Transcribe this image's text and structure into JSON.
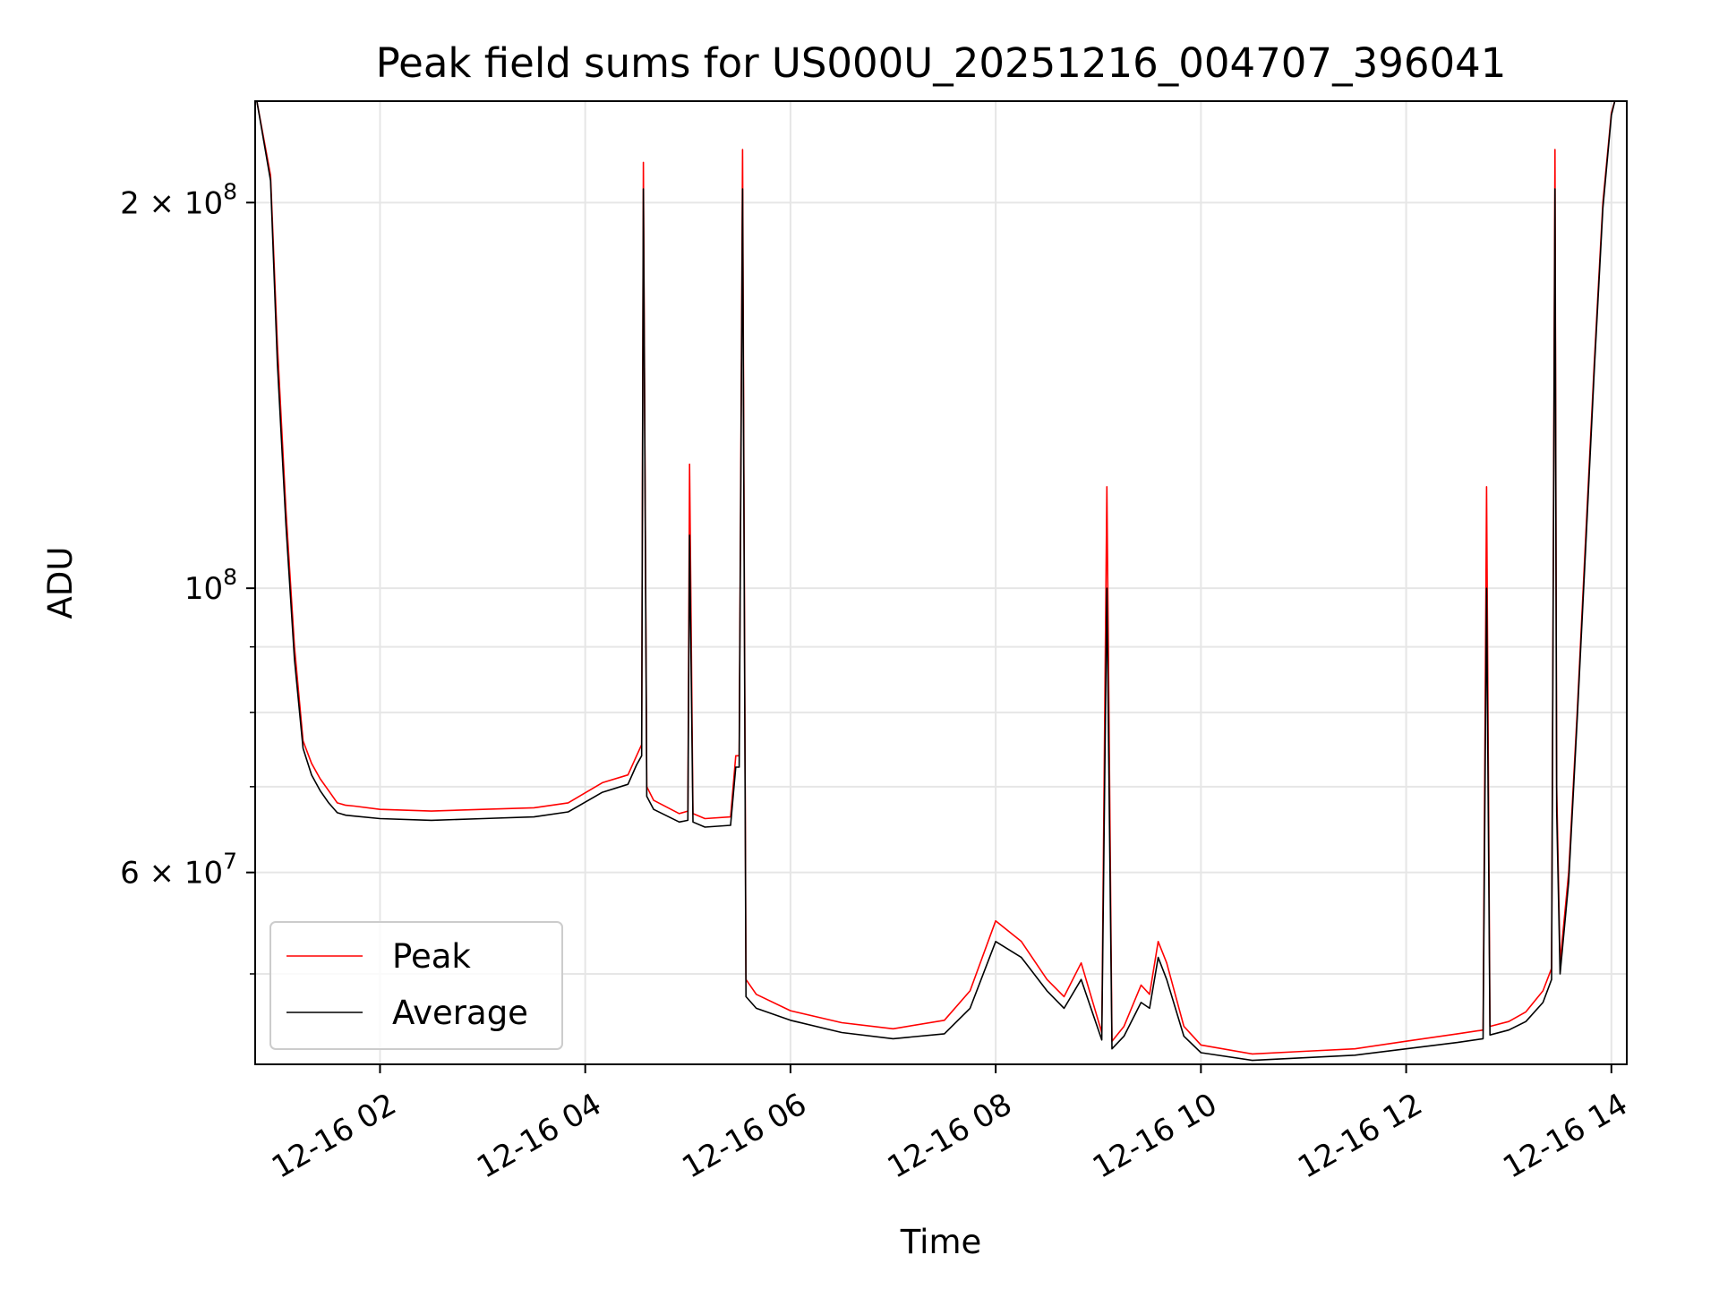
{
  "chart_data": {
    "type": "line",
    "title": "Peak field sums for US000U_20251216_004707_396041",
    "xlabel": "Time",
    "ylabel": "ADU",
    "yscale": "log",
    "ylim": [
      42500000,
      240000000
    ],
    "xlim": [
      "2025-12-16 00:47",
      "2025-12-16 14:09"
    ],
    "grid": true,
    "legend_position": "lower-left",
    "x_ticks": [
      {
        "value": "2025-12-16 02:00",
        "label": "12-16 02"
      },
      {
        "value": "2025-12-16 04:00",
        "label": "12-16 04"
      },
      {
        "value": "2025-12-16 06:00",
        "label": "12-16 06"
      },
      {
        "value": "2025-12-16 08:00",
        "label": "12-16 08"
      },
      {
        "value": "2025-12-16 10:00",
        "label": "12-16 10"
      },
      {
        "value": "2025-12-16 12:00",
        "label": "12-16 12"
      },
      {
        "value": "2025-12-16 14:00",
        "label": "12-16 14"
      }
    ],
    "y_ticks": [
      {
        "value": 60000000,
        "label": "6 × 10",
        "exp": "7"
      },
      {
        "value": 100000000,
        "label": "10",
        "exp": "8"
      },
      {
        "value": 200000000,
        "label": "2 × 10",
        "exp": "8"
      }
    ],
    "y_minor_ticks": [
      50000000,
      70000000,
      80000000,
      90000000
    ],
    "series": [
      {
        "name": "Peak",
        "color": "#ff0000",
        "x": [
          "2025-12-16 00:48",
          "2025-12-16 00:56",
          "2025-12-16 01:00",
          "2025-12-16 01:05",
          "2025-12-16 01:10",
          "2025-12-16 01:15",
          "2025-12-16 01:20",
          "2025-12-16 01:25",
          "2025-12-16 01:30",
          "2025-12-16 01:35",
          "2025-12-16 01:40",
          "2025-12-16 01:45",
          "2025-12-16 02:00",
          "2025-12-16 02:30",
          "2025-12-16 03:00",
          "2025-12-16 03:30",
          "2025-12-16 03:50",
          "2025-12-16 04:10",
          "2025-12-16 04:25",
          "2025-12-16 04:30",
          "2025-12-16 04:33",
          "2025-12-16 04:34",
          "2025-12-16 04:36",
          "2025-12-16 04:40",
          "2025-12-16 04:55",
          "2025-12-16 05:00",
          "2025-12-16 05:01",
          "2025-12-16 05:03",
          "2025-12-16 05:10",
          "2025-12-16 05:25",
          "2025-12-16 05:28",
          "2025-12-16 05:30",
          "2025-12-16 05:32",
          "2025-12-16 05:34",
          "2025-12-16 05:40",
          "2025-12-16 06:00",
          "2025-12-16 06:30",
          "2025-12-16 07:00",
          "2025-12-16 07:30",
          "2025-12-16 07:45",
          "2025-12-16 08:00",
          "2025-12-16 08:15",
          "2025-12-16 08:30",
          "2025-12-16 08:40",
          "2025-12-16 08:50",
          "2025-12-16 09:02",
          "2025-12-16 09:05",
          "2025-12-16 09:08",
          "2025-12-16 09:15",
          "2025-12-16 09:25",
          "2025-12-16 09:30",
          "2025-12-16 09:35",
          "2025-12-16 09:40",
          "2025-12-16 09:50",
          "2025-12-16 10:00",
          "2025-12-16 10:30",
          "2025-12-16 11:00",
          "2025-12-16 11:30",
          "2025-12-16 12:00",
          "2025-12-16 12:30",
          "2025-12-16 12:45",
          "2025-12-16 12:47",
          "2025-12-16 12:49",
          "2025-12-16 13:00",
          "2025-12-16 13:10",
          "2025-12-16 13:20",
          "2025-12-16 13:25",
          "2025-12-16 13:27",
          "2025-12-16 13:28",
          "2025-12-16 13:30",
          "2025-12-16 13:35",
          "2025-12-16 13:40",
          "2025-12-16 13:45",
          "2025-12-16 13:50",
          "2025-12-16 13:55",
          "2025-12-16 14:00",
          "2025-12-16 14:02"
        ],
        "y": [
          240000000,
          210000000,
          155000000,
          115000000,
          90000000,
          76000000,
          73000000,
          71000000,
          69500000,
          68000000,
          67700000,
          67600000,
          67200000,
          67000000,
          67200000,
          67400000,
          68000000,
          70500000,
          71500000,
          74000000,
          75500000,
          215000000,
          70000000,
          68300000,
          66700000,
          67000000,
          125000000,
          66700000,
          66100000,
          66300000,
          74000000,
          74000000,
          220000000,
          49500000,
          48200000,
          46800000,
          45800000,
          45300000,
          46000000,
          48500000,
          55000000,
          53000000,
          49500000,
          48000000,
          51000000,
          45000000,
          120000000,
          44300000,
          45500000,
          49000000,
          48200000,
          53000000,
          51000000,
          45500000,
          44000000,
          43300000,
          43500000,
          43700000,
          44300000,
          44900000,
          45200000,
          120000000,
          45500000,
          45900000,
          46700000,
          48500000,
          50500000,
          220000000,
          70000000,
          51000000,
          60000000,
          80000000,
          110000000,
          150000000,
          200000000,
          235000000,
          240000000
        ]
      },
      {
        "name": "Average",
        "color": "#000000",
        "x": [
          "2025-12-16 00:48",
          "2025-12-16 00:56",
          "2025-12-16 01:00",
          "2025-12-16 01:05",
          "2025-12-16 01:10",
          "2025-12-16 01:15",
          "2025-12-16 01:20",
          "2025-12-16 01:25",
          "2025-12-16 01:30",
          "2025-12-16 01:35",
          "2025-12-16 01:40",
          "2025-12-16 01:45",
          "2025-12-16 02:00",
          "2025-12-16 02:30",
          "2025-12-16 03:00",
          "2025-12-16 03:30",
          "2025-12-16 03:50",
          "2025-12-16 04:10",
          "2025-12-16 04:25",
          "2025-12-16 04:30",
          "2025-12-16 04:33",
          "2025-12-16 04:34",
          "2025-12-16 04:36",
          "2025-12-16 04:40",
          "2025-12-16 04:55",
          "2025-12-16 05:00",
          "2025-12-16 05:01",
          "2025-12-16 05:03",
          "2025-12-16 05:10",
          "2025-12-16 05:25",
          "2025-12-16 05:28",
          "2025-12-16 05:30",
          "2025-12-16 05:32",
          "2025-12-16 05:34",
          "2025-12-16 05:40",
          "2025-12-16 06:00",
          "2025-12-16 06:30",
          "2025-12-16 07:00",
          "2025-12-16 07:30",
          "2025-12-16 07:45",
          "2025-12-16 08:00",
          "2025-12-16 08:15",
          "2025-12-16 08:30",
          "2025-12-16 08:40",
          "2025-12-16 08:50",
          "2025-12-16 09:02",
          "2025-12-16 09:05",
          "2025-12-16 09:08",
          "2025-12-16 09:15",
          "2025-12-16 09:25",
          "2025-12-16 09:30",
          "2025-12-16 09:35",
          "2025-12-16 09:40",
          "2025-12-16 09:50",
          "2025-12-16 10:00",
          "2025-12-16 10:30",
          "2025-12-16 11:00",
          "2025-12-16 11:30",
          "2025-12-16 12:00",
          "2025-12-16 12:30",
          "2025-12-16 12:45",
          "2025-12-16 12:47",
          "2025-12-16 12:49",
          "2025-12-16 13:00",
          "2025-12-16 13:10",
          "2025-12-16 13:20",
          "2025-12-16 13:25",
          "2025-12-16 13:27",
          "2025-12-16 13:28",
          "2025-12-16 13:30",
          "2025-12-16 13:35",
          "2025-12-16 13:40",
          "2025-12-16 13:45",
          "2025-12-16 13:50",
          "2025-12-16 13:55",
          "2025-12-16 14:00",
          "2025-12-16 14:02"
        ],
        "y": [
          240000000,
          208000000,
          150000000,
          112000000,
          88000000,
          75000000,
          71500000,
          69500000,
          68000000,
          66800000,
          66500000,
          66400000,
          66100000,
          65900000,
          66100000,
          66300000,
          66900000,
          69300000,
          70300000,
          72800000,
          74000000,
          205000000,
          68800000,
          67200000,
          65700000,
          65900000,
          110000000,
          65700000,
          65100000,
          65300000,
          72500000,
          72500000,
          205000000,
          48000000,
          47000000,
          46000000,
          45000000,
          44500000,
          44900000,
          47000000,
          53000000,
          51500000,
          48500000,
          47000000,
          49500000,
          44400000,
          100000000,
          43700000,
          44700000,
          47500000,
          47000000,
          51500000,
          49500000,
          44700000,
          43400000,
          42800000,
          43000000,
          43200000,
          43700000,
          44200000,
          44500000,
          100000000,
          44800000,
          45200000,
          45900000,
          47500000,
          49500000,
          205000000,
          67000000,
          50000000,
          59000000,
          79000000,
          108000000,
          148000000,
          198000000,
          234000000,
          240000000
        ]
      }
    ]
  }
}
